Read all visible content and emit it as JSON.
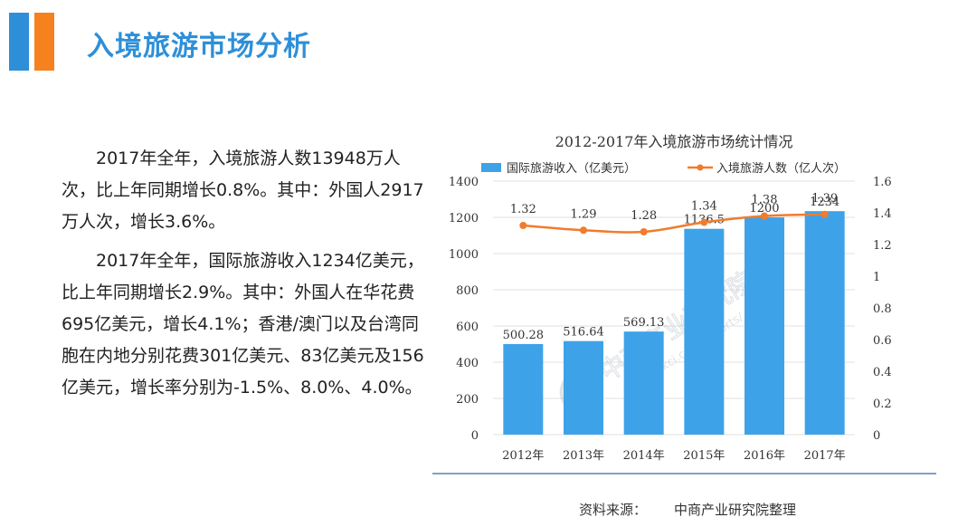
{
  "header": {
    "title": "入境旅游市场分析",
    "accent_colors": [
      "#2e8fd8",
      "#f5821f"
    ]
  },
  "body": {
    "paragraph1": "2017年全年，入境旅游人数13948万人次，比上年同期增长0.8%。其中：外国人2917万人次，增长3.6%。",
    "paragraph2": "2017年全年，国际旅游收入1234亿美元，比上年同期增长2.9%。其中：外国人在华花费695亿美元，增长4.1%；香港/澳门以及台湾同胞在内地分别花费301亿美元、83亿美元及156亿美元，增长率分别为-1.5%、8.0%、4.0%。"
  },
  "chart_data": {
    "type": "bar",
    "title": "2012-2017年入境旅游市场统计情况",
    "categories": [
      "2012年",
      "2013年",
      "2014年",
      "2015年",
      "2016年",
      "2017年"
    ],
    "series": [
      {
        "name": "国际旅游收入（亿美元）",
        "type": "bar",
        "axis": "left",
        "values": [
          500.28,
          516.64,
          569.13,
          1136.5,
          1200,
          1234
        ],
        "labels": [
          "500.28",
          "516.64",
          "569.13",
          "1136.5",
          "1200",
          "1234"
        ],
        "color": "#3ea2e8"
      },
      {
        "name": "入境旅游人数（亿人次）",
        "type": "line",
        "axis": "right",
        "values": [
          1.32,
          1.29,
          1.28,
          1.34,
          1.38,
          1.39
        ],
        "labels": [
          "1.32",
          "1.29",
          "1.28",
          "1.34",
          "1.38",
          "1.39"
        ],
        "color": "#f07c2e"
      }
    ],
    "y_left": {
      "min": 0,
      "max": 1400,
      "ticks": [
        "0",
        "200",
        "400",
        "600",
        "800",
        "1000",
        "1200",
        "1400"
      ]
    },
    "y_right": {
      "min": 0,
      "max": 1.6,
      "ticks": [
        "0",
        "0.2",
        "0.4",
        "0.6",
        "0.8",
        "1",
        "1.2",
        "1.4",
        "1.6"
      ]
    },
    "legend_position": "top",
    "grid": true
  },
  "watermark": {
    "text_cn": "中商产业研究院",
    "text_url": "www.askci.com/reports/"
  },
  "footer": {
    "source_label": "资料来源：",
    "source_value": "中商产业研究院整理"
  }
}
